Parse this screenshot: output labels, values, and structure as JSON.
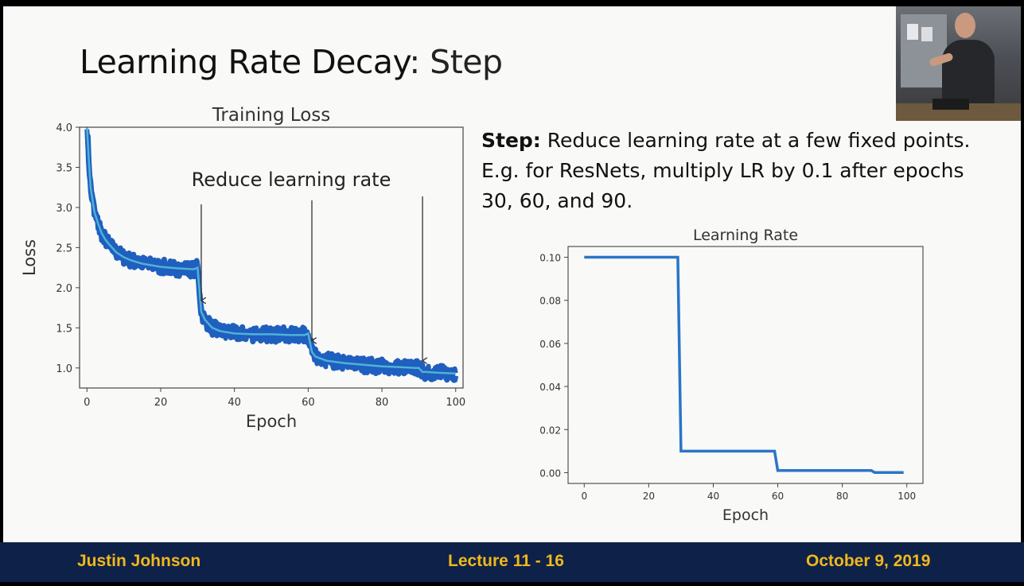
{
  "slide": {
    "title_main": "Learning Rate Decay",
    "title_accent": ": Step",
    "description": {
      "lead": "Step:",
      "text": "Reduce learning rate at a few fixed points. E.g. for ResNets, multiply LR by 0.1 after epochs 30, 60, and 90."
    }
  },
  "footer": {
    "author": "Justin Johnson",
    "lecture": "Lecture 11 - 16",
    "date": "October 9, 2019"
  },
  "chart_data": [
    {
      "type": "line",
      "title": "Training Loss",
      "xlabel": "Epoch",
      "ylabel": "Loss",
      "xlim": [
        -2,
        102
      ],
      "ylim": [
        0.75,
        4.0
      ],
      "xticks": [
        0,
        20,
        40,
        60,
        80,
        100
      ],
      "yticks": [
        1.0,
        1.5,
        2.0,
        2.5,
        3.0,
        3.5,
        4.0
      ],
      "annotation": {
        "text": "Reduce learning rate",
        "arrows_at_epochs": [
          31,
          61,
          91
        ]
      },
      "colors": {
        "raw": "#1f5fbf",
        "smoothed": "#4fb2d6"
      },
      "series": [
        {
          "x": [
            0,
            0.5,
            1,
            2,
            3,
            4,
            5,
            6,
            8,
            10,
            12,
            15,
            20,
            25,
            29,
            30,
            31,
            32,
            34,
            36,
            40,
            45,
            50,
            55,
            59,
            60,
            61,
            62,
            65,
            70,
            75,
            80,
            85,
            89,
            90,
            91,
            92,
            95,
            100
          ],
          "y": [
            4.0,
            3.6,
            3.25,
            2.95,
            2.8,
            2.68,
            2.6,
            2.54,
            2.44,
            2.38,
            2.34,
            2.3,
            2.26,
            2.24,
            2.23,
            2.25,
            1.7,
            1.6,
            1.5,
            1.46,
            1.43,
            1.42,
            1.42,
            1.41,
            1.41,
            1.43,
            1.2,
            1.14,
            1.09,
            1.06,
            1.04,
            1.02,
            1.01,
            1.0,
            1.0,
            0.95,
            0.95,
            0.94,
            0.93
          ],
          "noise_band": 0.12
        }
      ]
    },
    {
      "type": "line",
      "title": "Learning Rate",
      "xlabel": "Epoch",
      "ylabel": "",
      "xlim": [
        -5,
        105
      ],
      "ylim": [
        -0.005,
        0.105
      ],
      "xticks": [
        0,
        20,
        40,
        60,
        80,
        100
      ],
      "yticks": [
        0.0,
        0.02,
        0.04,
        0.06,
        0.08,
        0.1
      ],
      "ytick_labels": [
        "0.00",
        "0.02",
        "0.04",
        "0.06",
        "0.08",
        "0.10"
      ],
      "colors": {
        "line": "#2a75c8"
      },
      "series": [
        {
          "x": [
            0,
            29,
            30,
            59,
            60,
            89,
            90,
            99
          ],
          "y": [
            0.1,
            0.1,
            0.01,
            0.01,
            0.001,
            0.001,
            0.0001,
            0.0001
          ]
        }
      ]
    }
  ]
}
